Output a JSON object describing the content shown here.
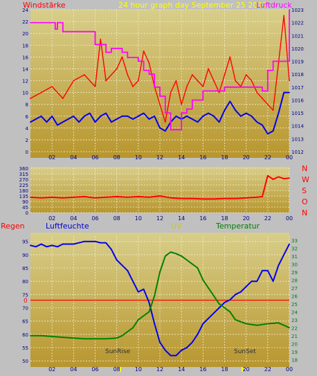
{
  "colors": {
    "background": "#c0c0c0",
    "plot_top": "#d8ce8a",
    "plot_bottom": "#b8962e",
    "grid": "#f2eecf",
    "red": "#ff0000",
    "blue": "#0000ee",
    "magenta": "#ff00ff",
    "green": "#008000",
    "yellow": "#ffff00",
    "wind_label": "#ff0000",
    "pressure_label": "#ff00ff",
    "uv_label": "#cccc00",
    "rain_label": "#ff0000",
    "humidity_label": "#0000cc",
    "temperature_label": "#008000",
    "axis_text": "#000080",
    "sun_text": "#303030"
  },
  "header": {
    "left_label": "Windstärke",
    "title": "24 hour graph day   September 25 2017",
    "right_label": "Luftdruck"
  },
  "labels": {
    "regen": "Regen",
    "luftfeuchte": "Luftfeuchte",
    "uv": "UV",
    "temperatur": "Temperatur",
    "sunrise": "SunRise",
    "sunset": "SunSet",
    "zero_mark": "0"
  },
  "compass": [
    "N",
    "W",
    "S",
    "O",
    "N"
  ],
  "x_ticks": [
    "02",
    "04",
    "06",
    "08",
    "10",
    "12",
    "14",
    "16",
    "18",
    "20",
    "22",
    "00"
  ],
  "chart_data": [
    {
      "type": "line",
      "name": "wind-pressure",
      "x_range": [
        0,
        24
      ],
      "y_left_ticks": [
        0,
        2,
        4,
        6,
        8,
        10,
        12,
        14,
        16,
        18,
        20,
        22,
        24
      ],
      "y_left_range": [
        0,
        24
      ],
      "y_right_ticks": [
        1012,
        1013,
        1014,
        1015,
        1016,
        1017,
        1018,
        1019,
        1020,
        1021,
        1022,
        1023
      ],
      "y_right_range": [
        1012,
        1023
      ],
      "grid": true,
      "series": [
        {
          "axis": "left",
          "color": "#ff0000",
          "x": [
            0,
            1,
            2,
            3,
            4,
            5,
            6,
            6.5,
            7,
            8,
            8.5,
            9,
            9.5,
            10,
            10.5,
            11,
            11.5,
            12,
            12.5,
            13,
            13.5,
            14,
            14.5,
            15,
            15.5,
            16,
            16.5,
            17,
            17.5,
            18,
            18.5,
            19,
            19.5,
            20,
            20.5,
            21,
            21.5,
            22,
            22.5,
            23,
            23.5,
            24
          ],
          "values": [
            9,
            10,
            11,
            9,
            12,
            13,
            11,
            19,
            12,
            14,
            16,
            13,
            11,
            12,
            17,
            15,
            11,
            8,
            5,
            10,
            12,
            8,
            11,
            13,
            12,
            11,
            14,
            12,
            10,
            13,
            16,
            12,
            11,
            13,
            12,
            10,
            9,
            8,
            7,
            15,
            23,
            12
          ]
        },
        {
          "axis": "left",
          "color": "#0000ee",
          "x": [
            0,
            0.5,
            1,
            1.5,
            2,
            2.5,
            3,
            3.5,
            4,
            4.5,
            5,
            5.5,
            6,
            6.5,
            7,
            7.5,
            8,
            8.5,
            9,
            9.5,
            10,
            10.5,
            11,
            11.5,
            12,
            12.5,
            13,
            13.5,
            14,
            14.5,
            15,
            15.5,
            16,
            16.5,
            17,
            17.5,
            18,
            18.5,
            19,
            19.5,
            20,
            20.5,
            21,
            21.5,
            22,
            22.5,
            23,
            23.5,
            24
          ],
          "values": [
            5,
            5.5,
            6,
            5,
            6,
            4.5,
            5,
            5.5,
            6,
            5,
            6,
            6.5,
            5,
            6,
            6.5,
            5,
            5.5,
            6,
            6,
            5.5,
            6,
            6.5,
            5.5,
            6,
            4,
            3.5,
            5,
            6,
            5.5,
            6,
            5.5,
            5,
            6,
            6.5,
            6,
            5,
            7,
            8.5,
            7,
            6,
            6.5,
            6,
            5,
            4.5,
            3,
            3.5,
            6.5,
            10,
            10
          ]
        },
        {
          "axis": "right",
          "color": "#ff00ff",
          "x": [
            0,
            1,
            1.5,
            2,
            2.3,
            2.5,
            3,
            5,
            6,
            6.5,
            7,
            7.5,
            8,
            8.5,
            9,
            9.5,
            10,
            10.5,
            11,
            11.5,
            12,
            12.5,
            13,
            13.5,
            14,
            14.5,
            15,
            16,
            17,
            18,
            19,
            20,
            21,
            21.5,
            22,
            22.5,
            23,
            23.5,
            24
          ],
          "values": [
            1022,
            1022,
            1022,
            1022,
            1021.5,
            1022,
            1021.3,
            1021.3,
            1020.3,
            1020.3,
            1019.7,
            1020,
            1020,
            1019.7,
            1019.3,
            1019.3,
            1019,
            1018.3,
            1018,
            1017,
            1016.3,
            1015,
            1013.7,
            1013.7,
            1015,
            1015.3,
            1016,
            1016.7,
            1016.7,
            1017,
            1017,
            1017,
            1017,
            1016.7,
            1018.3,
            1019,
            1019,
            1019,
            1023
          ]
        }
      ]
    },
    {
      "type": "line",
      "name": "wind-direction",
      "x_range": [
        0,
        24
      ],
      "y_ticks": [
        0,
        45,
        90,
        135,
        180,
        225,
        270,
        315,
        360
      ],
      "y_range": [
        0,
        360
      ],
      "grid": true,
      "series": [
        {
          "color": "#ff0000",
          "x": [
            0,
            1,
            2,
            3,
            4,
            5,
            6,
            7,
            8,
            9,
            10,
            11,
            12,
            13,
            14,
            15,
            16,
            17,
            18,
            19,
            20,
            21,
            21.5,
            22,
            22.5,
            23,
            23.5,
            24
          ],
          "values": [
            125,
            120,
            125,
            120,
            125,
            130,
            120,
            125,
            130,
            125,
            130,
            125,
            135,
            120,
            115,
            115,
            110,
            110,
            115,
            115,
            120,
            125,
            130,
            300,
            270,
            290,
            275,
            280
          ]
        }
      ]
    },
    {
      "type": "line",
      "name": "humidity-temperature",
      "x_range": [
        0,
        24
      ],
      "y_left_ticks": [
        50,
        55,
        60,
        65,
        70,
        75,
        80,
        85,
        90,
        95
      ],
      "y_left_range": [
        49,
        97
      ],
      "y_right_ticks": [
        18,
        19,
        20,
        21,
        22,
        23,
        24,
        25,
        26,
        27,
        28,
        29,
        30,
        31,
        32,
        33
      ],
      "y_right_range": [
        17.5,
        33.5
      ],
      "grid": true,
      "series": [
        {
          "name": "Luftfeuchte",
          "axis": "left",
          "color": "#0000ee",
          "x": [
            0,
            0.5,
            1,
            1.5,
            2,
            2.5,
            3,
            4,
            5,
            6,
            6.5,
            7,
            7.5,
            8,
            8.5,
            9,
            9.5,
            10,
            10.5,
            11,
            11.5,
            12,
            12.5,
            13,
            13.5,
            14,
            14.5,
            15,
            15.5,
            16,
            16.5,
            17,
            17.5,
            18,
            18.5,
            19,
            19.5,
            20,
            20.5,
            21,
            21.5,
            22,
            22.5,
            23,
            23.5,
            24
          ],
          "values": [
            93.5,
            93,
            94,
            93,
            93.5,
            93,
            94,
            94,
            95,
            95,
            94.5,
            94.5,
            92,
            88,
            86,
            84,
            80,
            76,
            77,
            72,
            64,
            57,
            54,
            52,
            52,
            54,
            55,
            57,
            60,
            64,
            66,
            68,
            70,
            72,
            73,
            75,
            76,
            78,
            80,
            80,
            84,
            84,
            80,
            86,
            90,
            94
          ]
        },
        {
          "name": "Temperatur",
          "axis": "right",
          "color": "#008000",
          "x": [
            0,
            1,
            2,
            3,
            4,
            5,
            6,
            7,
            8,
            8.5,
            9,
            9.5,
            10,
            10.5,
            11,
            11.5,
            12,
            12.5,
            13,
            13.5,
            14,
            14.5,
            15,
            15.5,
            16,
            16.5,
            17,
            17.5,
            18,
            18.5,
            19,
            20,
            21,
            22,
            23,
            23.5,
            24
          ],
          "values": [
            21,
            21,
            20.9,
            20.8,
            20.7,
            20.6,
            20.6,
            20.6,
            20.7,
            21,
            21.5,
            22,
            23,
            23.5,
            24,
            26,
            29,
            31,
            31.5,
            31.3,
            31,
            30.5,
            30,
            29.5,
            28,
            27,
            26,
            25,
            24.5,
            24,
            23,
            22.5,
            22.3,
            22.5,
            22.6,
            22.3,
            22
          ]
        }
      ]
    }
  ]
}
